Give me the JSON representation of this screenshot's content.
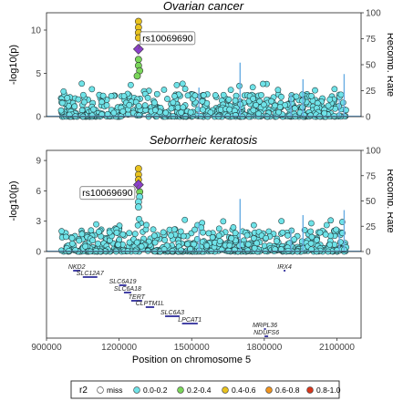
{
  "chart_data": [
    {
      "type": "scatter",
      "title": "Ovarian cancer",
      "ylabel": "-log10(p)",
      "ylabel_right": "Recomb. Rate",
      "ylim": [
        0,
        12
      ],
      "yticks": [
        0,
        5,
        10
      ],
      "ylim_right": [
        0,
        100
      ],
      "yticks_right": [
        0,
        25,
        50,
        75,
        100
      ],
      "xlim": [
        900000,
        2200000
      ],
      "lead_snp": {
        "label": "rs10069690",
        "x": 1280000,
        "y": 7.8
      },
      "ld_points": [
        {
          "x": 1280000,
          "y": 11.0,
          "r2": "0.4-0.6"
        },
        {
          "x": 1280000,
          "y": 10.3,
          "r2": "0.4-0.6"
        },
        {
          "x": 1280000,
          "y": 9.7,
          "r2": "0.4-0.6"
        },
        {
          "x": 1280000,
          "y": 9.1,
          "r2": "0.4-0.6"
        },
        {
          "x": 1280000,
          "y": 6.6,
          "r2": "0.2-0.4"
        },
        {
          "x": 1280000,
          "y": 5.9,
          "r2": "0.2-0.4"
        },
        {
          "x": 1285000,
          "y": 5.3,
          "r2": "0.2-0.4"
        },
        {
          "x": 1275000,
          "y": 4.7,
          "r2": "0.2-0.4"
        }
      ],
      "recomb_spikes": [
        {
          "x": 1530000,
          "rate": 28
        },
        {
          "x": 1700000,
          "rate": 52
        },
        {
          "x": 1910000,
          "rate": 22
        },
        {
          "x": 1960000,
          "rate": 36
        },
        {
          "x": 2110000,
          "rate": 17
        },
        {
          "x": 2130000,
          "rate": 41
        }
      ]
    },
    {
      "type": "scatter",
      "title": "Seborrheic keratosis",
      "ylabel": "-log10(p)",
      "ylabel_right": "Recomb. Rate",
      "ylim": [
        0,
        10
      ],
      "yticks": [
        0,
        3,
        6,
        9
      ],
      "ylim_right": [
        0,
        100
      ],
      "yticks_right": [
        0,
        25,
        50,
        75,
        100
      ],
      "xlim": [
        900000,
        2200000
      ],
      "lead_snp": {
        "label": "rs10069690",
        "x": 1280000,
        "y": 6.6
      },
      "ld_points": [
        {
          "x": 1280000,
          "y": 8.2,
          "r2": "0.4-0.6"
        },
        {
          "x": 1280000,
          "y": 7.6,
          "r2": "0.4-0.6"
        },
        {
          "x": 1280000,
          "y": 7.1,
          "r2": "0.4-0.6"
        },
        {
          "x": 1285000,
          "y": 5.9,
          "r2": "0.2-0.4"
        },
        {
          "x": 1285000,
          "y": 5.4,
          "r2": "0.0-0.2"
        },
        {
          "x": 1280000,
          "y": 4.9,
          "r2": "0.0-0.2"
        },
        {
          "x": 1280000,
          "y": 4.4,
          "r2": "0.0-0.2"
        }
      ],
      "recomb_spikes": [
        {
          "x": 1530000,
          "rate": 28
        },
        {
          "x": 1700000,
          "rate": 52
        },
        {
          "x": 1910000,
          "rate": 22
        },
        {
          "x": 1960000,
          "rate": 36
        },
        {
          "x": 2110000,
          "rate": 17
        },
        {
          "x": 2130000,
          "rate": 41
        }
      ]
    }
  ],
  "genes": [
    {
      "name": "NKD2",
      "start": 1010000,
      "end": 1040000,
      "row": 0
    },
    {
      "name": "SLC12A7",
      "start": 1050000,
      "end": 1110000,
      "row": 1
    },
    {
      "name": "IRX4",
      "start": 1880000,
      "end": 1885000,
      "row": 0
    },
    {
      "name": "SLC6A19",
      "start": 1200000,
      "end": 1230000,
      "row": 2
    },
    {
      "name": "SLC6A18",
      "start": 1220000,
      "end": 1250000,
      "row": 3
    },
    {
      "name": "TERT",
      "start": 1250000,
      "end": 1295000,
      "row": 4
    },
    {
      "name": "CLPTM1L",
      "start": 1310000,
      "end": 1345000,
      "row": 5
    },
    {
      "name": "SLC6A3",
      "start": 1390000,
      "end": 1450000,
      "row": 6
    },
    {
      "name": "LPCAT1",
      "start": 1460000,
      "end": 1525000,
      "row": 7
    },
    {
      "name": "MRPL36",
      "start": 1799000,
      "end": 1800000,
      "row": 8
    },
    {
      "name": "NDUFS6",
      "start": 1801000,
      "end": 1816000,
      "row": 9
    }
  ],
  "x_axis": {
    "label": "Position on chromosome 5",
    "ticks": [
      900000,
      1200000,
      1500000,
      1800000,
      2100000
    ],
    "tick_labels": [
      "900000",
      "1200000",
      "1500000",
      "1800000",
      "2100000"
    ]
  },
  "legend": {
    "title": "r2",
    "items": [
      {
        "label": "miss",
        "color": "#ffffff"
      },
      {
        "label": "0.0-0.2",
        "color": "#6fe3e8"
      },
      {
        "label": "0.2-0.4",
        "color": "#7ad65a"
      },
      {
        "label": "0.4-0.6",
        "color": "#e8c21e"
      },
      {
        "label": "0.6-0.8",
        "color": "#f0941e"
      },
      {
        "label": "0.8-1.0",
        "color": "#d8361c"
      }
    ]
  },
  "colors": {
    "background_points": "#6fe3e8",
    "lead_snp": "#8b3fc8",
    "recomb_line": "#6aaee3",
    "gene": "#2c2a9a"
  }
}
